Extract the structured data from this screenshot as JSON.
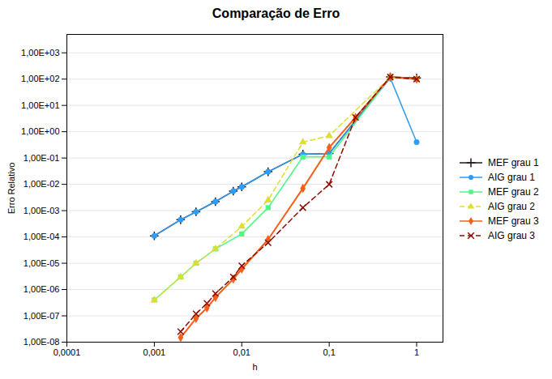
{
  "chart_data": {
    "type": "line",
    "title": "Comparação de Erro",
    "x_label": "h",
    "y_label": "Erro Relativo",
    "log": true,
    "grid": "y",
    "legend": "right",
    "xlim": [
      0.0001,
      2.0
    ],
    "ylim": [
      1e-08,
      5000.0
    ],
    "xticks": [
      {
        "value": 0.0001,
        "label": "0,0001"
      },
      {
        "value": 0.001,
        "label": "0,001"
      },
      {
        "value": 0.01,
        "label": "0,01"
      },
      {
        "value": 0.1,
        "label": "0,1"
      },
      1
    ],
    "yticks": [
      {
        "value": 1e-08,
        "label": "1,00E-08"
      },
      {
        "value": 1e-07,
        "label": "1,00E-07"
      },
      {
        "value": 1e-06,
        "label": "1,00E-06"
      },
      {
        "value": 1e-05,
        "label": "1,00E-05"
      },
      {
        "value": 0.0001,
        "label": "1,00E-04"
      },
      {
        "value": 0.001,
        "label": "1,00E-03"
      },
      {
        "value": 0.01,
        "label": "1,00E-02"
      },
      {
        "value": 0.1,
        "label": "1,00E-01"
      },
      {
        "value": 1,
        "label": "1,00E+00"
      },
      {
        "value": 10,
        "label": "1,00E+01"
      },
      {
        "value": 100,
        "label": "1,00E+02"
      },
      {
        "value": 1000,
        "label": "1,00E+03"
      }
    ],
    "series": [
      {
        "name": "MEF grau 1",
        "marker": "plus",
        "line_style": "solid",
        "x": [
          0.001,
          0.002,
          0.003,
          0.005,
          0.008,
          0.01,
          0.02,
          0.05,
          0.1,
          0.5,
          1.0
        ],
        "values": [
          0.00011,
          0.00045,
          0.0009,
          0.0022,
          0.0055,
          0.008,
          0.03,
          0.14,
          0.15,
          120.0,
          110.0
        ]
      },
      {
        "name": "AIG grau 1",
        "marker": "circle",
        "line_style": "solid",
        "x": [
          0.001,
          0.002,
          0.003,
          0.005,
          0.008,
          0.01,
          0.02,
          0.05,
          0.1,
          0.5,
          1.0
        ],
        "values": [
          0.00011,
          0.00045,
          0.0009,
          0.0022,
          0.0055,
          0.008,
          0.03,
          0.14,
          0.15,
          110.0,
          0.4
        ]
      },
      {
        "name": "MEF grau 2",
        "marker": "square",
        "line_style": "solid",
        "x": [
          0.001,
          0.002,
          0.003,
          0.005,
          0.01,
          0.02,
          0.05,
          0.1,
          0.5,
          1.0
        ],
        "values": [
          4e-07,
          3e-06,
          1e-05,
          3.5e-05,
          0.00013,
          0.0013,
          0.11,
          0.11,
          120.0,
          100.0
        ]
      },
      {
        "name": "AIG grau 2",
        "marker": "triangle",
        "line_style": "dashed",
        "x": [
          0.001,
          0.002,
          0.003,
          0.005,
          0.01,
          0.02,
          0.05,
          0.1,
          0.5,
          1.0
        ],
        "values": [
          4e-07,
          3e-06,
          1e-05,
          3.5e-05,
          0.00025,
          0.0025,
          0.4,
          0.7,
          120.0,
          100.0
        ]
      },
      {
        "name": "MEF grau 3",
        "marker": "diamond",
        "line_style": "solid",
        "x": [
          0.002,
          0.003,
          0.004,
          0.005,
          0.008,
          0.01,
          0.02,
          0.05,
          0.1,
          0.2,
          0.5,
          1.0
        ],
        "values": [
          1.5e-08,
          8e-08,
          2e-07,
          5e-07,
          2.5e-06,
          6e-06,
          8e-05,
          0.007,
          0.25,
          3.5,
          120.0,
          100.0
        ]
      },
      {
        "name": "AIG grau 3",
        "marker": "x",
        "line_style": "dashed",
        "x": [
          0.002,
          0.003,
          0.004,
          0.005,
          0.008,
          0.01,
          0.02,
          0.05,
          0.1,
          0.2,
          0.5,
          1.0
        ],
        "values": [
          2.5e-08,
          1.2e-07,
          3e-07,
          7e-07,
          3e-06,
          8e-06,
          6e-05,
          0.0013,
          0.01,
          3.5,
          120.0,
          100.0
        ]
      }
    ]
  }
}
